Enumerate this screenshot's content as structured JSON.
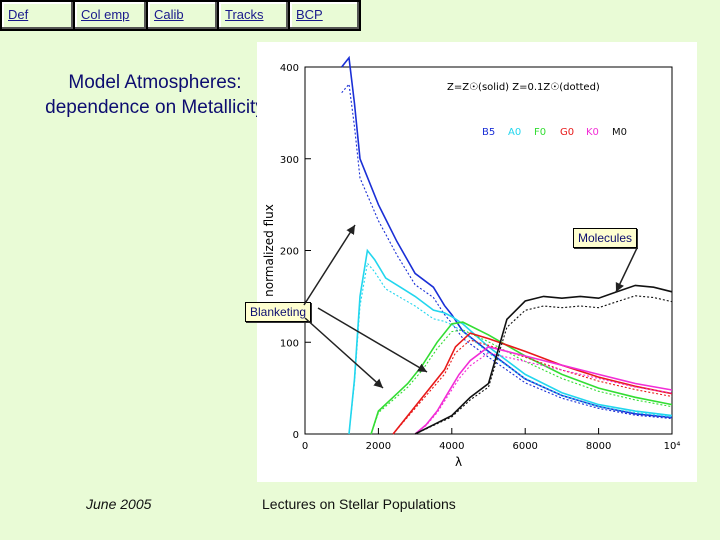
{
  "nav": [
    {
      "label": "Def"
    },
    {
      "label": "Col emp"
    },
    {
      "label": "Calib"
    },
    {
      "label": "Tracks"
    },
    {
      "label": "BCP"
    }
  ],
  "slide": {
    "title": "Model Atmospheres: dependence on Metallicity",
    "footer_date": "June 2005",
    "footer_title": "Lectures on Stellar Populations"
  },
  "callouts": {
    "molecules": "Molecules",
    "blanketing": "Blanketing"
  },
  "chart_data": {
    "type": "line",
    "ylabel": "normalized flux",
    "xlabel": "λ",
    "xlim": [
      0,
      10000
    ],
    "ylim": [
      0,
      400
    ],
    "x_ticks": [
      "0",
      "2000",
      "4000",
      "6000",
      "8000",
      "10⁴"
    ],
    "y_ticks": [
      "0",
      "100",
      "200",
      "300",
      "400"
    ],
    "annotation_metallicity": "Z=Z☉(solid)     Z=0.1Z☉(dotted)",
    "series": [
      {
        "name": "B5",
        "color": "#1a2fd6",
        "points": [
          [
            1000,
            400
          ],
          [
            1200,
            410
          ],
          [
            1350,
            360
          ],
          [
            1500,
            300
          ],
          [
            2000,
            250
          ],
          [
            2500,
            210
          ],
          [
            3000,
            175
          ],
          [
            3500,
            160
          ],
          [
            3800,
            140
          ],
          [
            4000,
            130
          ],
          [
            4300,
            112
          ],
          [
            5000,
            90
          ],
          [
            6000,
            60
          ],
          [
            7000,
            42
          ],
          [
            8000,
            30
          ],
          [
            9000,
            22
          ],
          [
            10000,
            18
          ]
        ]
      },
      {
        "name": "A0",
        "color": "#22d6ee",
        "points": [
          [
            1200,
            0
          ],
          [
            1350,
            60
          ],
          [
            1500,
            150
          ],
          [
            1700,
            200
          ],
          [
            1900,
            190
          ],
          [
            2200,
            170
          ],
          [
            2600,
            160
          ],
          [
            3000,
            150
          ],
          [
            3500,
            135
          ],
          [
            3800,
            132
          ],
          [
            4000,
            128
          ],
          [
            4300,
            120
          ],
          [
            5000,
            95
          ],
          [
            6000,
            65
          ],
          [
            7000,
            45
          ],
          [
            8000,
            32
          ],
          [
            9000,
            25
          ],
          [
            10000,
            20
          ]
        ]
      },
      {
        "name": "F0",
        "color": "#33dd33",
        "points": [
          [
            1800,
            0
          ],
          [
            2000,
            25
          ],
          [
            2400,
            40
          ],
          [
            2800,
            55
          ],
          [
            3200,
            75
          ],
          [
            3600,
            100
          ],
          [
            4000,
            120
          ],
          [
            4300,
            122
          ],
          [
            5000,
            108
          ],
          [
            6000,
            85
          ],
          [
            7000,
            65
          ],
          [
            8000,
            50
          ],
          [
            9000,
            40
          ],
          [
            10000,
            32
          ]
        ]
      },
      {
        "name": "G0",
        "color": "#e81a1a",
        "points": [
          [
            2400,
            0
          ],
          [
            2700,
            15
          ],
          [
            3000,
            30
          ],
          [
            3400,
            50
          ],
          [
            3800,
            70
          ],
          [
            4100,
            95
          ],
          [
            4500,
            110
          ],
          [
            5000,
            104
          ],
          [
            6000,
            90
          ],
          [
            7000,
            75
          ],
          [
            8000,
            62
          ],
          [
            9000,
            52
          ],
          [
            10000,
            44
          ]
        ]
      },
      {
        "name": "K0",
        "color": "#f22dd6",
        "points": [
          [
            3000,
            0
          ],
          [
            3300,
            10
          ],
          [
            3600,
            25
          ],
          [
            3900,
            45
          ],
          [
            4200,
            65
          ],
          [
            4500,
            80
          ],
          [
            5000,
            95
          ],
          [
            6000,
            85
          ],
          [
            7000,
            75
          ],
          [
            8000,
            65
          ],
          [
            9000,
            55
          ],
          [
            10000,
            48
          ]
        ]
      },
      {
        "name": "M0",
        "color": "#111111",
        "points": [
          [
            3000,
            0
          ],
          [
            3500,
            10
          ],
          [
            4000,
            20
          ],
          [
            4500,
            40
          ],
          [
            5000,
            55
          ],
          [
            5500,
            125
          ],
          [
            6000,
            145
          ],
          [
            6500,
            150
          ],
          [
            7000,
            148
          ],
          [
            7500,
            150
          ],
          [
            8000,
            148
          ],
          [
            8500,
            155
          ],
          [
            9000,
            162
          ],
          [
            9500,
            160
          ],
          [
            10000,
            155
          ]
        ]
      }
    ]
  }
}
